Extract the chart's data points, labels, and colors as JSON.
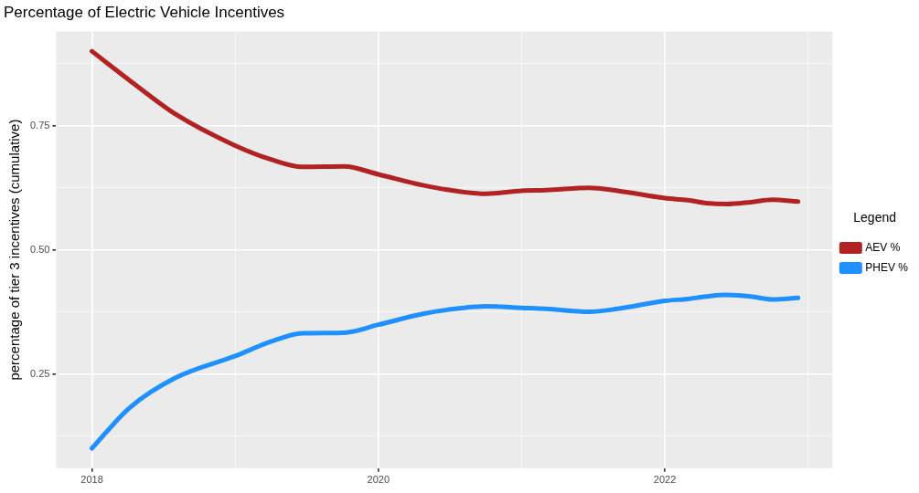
{
  "chart_data": {
    "type": "line",
    "title": "Percentage of Electric Vehicle Incentives",
    "ylabel": "percentage of tier 3 incentives (cumulative)",
    "legend_title": "Legend",
    "x": [
      2018,
      2018.26,
      2018.59,
      2019.0,
      2019.25,
      2019.47,
      2019.76,
      2020.0,
      2020.31,
      2020.48,
      2020.75,
      2021.0,
      2021.17,
      2021.47,
      2021.67,
      2022.0,
      2022.16,
      2022.29,
      2022.43,
      2022.6,
      2022.75,
      2022.93
    ],
    "series": [
      {
        "name": "AEV %",
        "color": "#b22222",
        "values": [
          0.9,
          0.842,
          0.772,
          0.71,
          0.682,
          0.667,
          0.668,
          0.652,
          0.63,
          0.621,
          0.613,
          0.619,
          0.62,
          0.625,
          0.619,
          0.604,
          0.6,
          0.594,
          0.592,
          0.596,
          0.601,
          0.597
        ]
      },
      {
        "name": "PHEV %",
        "color": "#1e90ff",
        "values": [
          0.1,
          0.181,
          0.243,
          0.286,
          0.315,
          0.332,
          0.333,
          0.349,
          0.371,
          0.379,
          0.386,
          0.383,
          0.381,
          0.375,
          0.381,
          0.397,
          0.401,
          0.406,
          0.409,
          0.406,
          0.4,
          0.403
        ]
      }
    ],
    "xlim": [
      2017.75,
      2023.17
    ],
    "xticks": [
      2018,
      {
        "value": 2019,
        "label": null
      },
      2020,
      {
        "value": 2021,
        "label": null
      },
      2022,
      {
        "value": 2023,
        "label": null
      }
    ],
    "ylim": [
      0.06,
      0.94
    ],
    "yticks": [
      {
        "value": 0.125,
        "label": null
      },
      {
        "value": 0.25,
        "label": "0.25"
      },
      {
        "value": 0.375,
        "label": null
      },
      {
        "value": 0.5,
        "label": "0.50"
      },
      {
        "value": 0.625,
        "label": null
      },
      {
        "value": 0.75,
        "label": "0.75"
      },
      {
        "value": 0.875,
        "label": null
      }
    ],
    "grid": true,
    "legend": "right",
    "marker": "none",
    "line_style": "solid"
  }
}
